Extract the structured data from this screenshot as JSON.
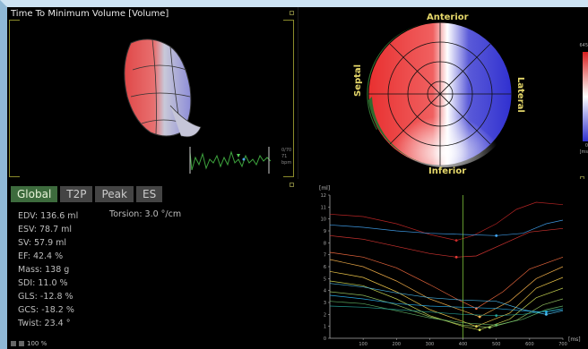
{
  "panel3d": {
    "title": "Time To Minimum Volume [Volume]",
    "ecg_label_top": "0/70",
    "ecg_label_bottom": "71 bpm"
  },
  "bullseye": {
    "labels": {
      "anterior": "Anterior",
      "inferior": "Inferior",
      "septal": "Septal",
      "lateral": "Lateral"
    },
    "scale_top": "645",
    "scale_bottom": "0",
    "scale_unit": "[ms"
  },
  "tabs": [
    {
      "label": "Global",
      "active": true
    },
    {
      "label": "T2P",
      "active": false
    },
    {
      "label": "Peak",
      "active": false
    },
    {
      "label": "ES",
      "active": false
    }
  ],
  "stats": [
    "EDV: 136.6 ml",
    "ESV: 78.7 ml",
    "SV: 57.9 ml",
    "EF: 42.4 %",
    "Mass: 138 g",
    "SDI: 11.0 %",
    "GLS: -12.8 %",
    "GCS: -18.2 %",
    "Twist: 23.4 °"
  ],
  "torsion": "Torsion: 3.0 °/cm",
  "footer": {
    "zoom": "100 %"
  },
  "chart_data": {
    "type": "line",
    "ylabel": "[ml]",
    "xlabel": "[ms]",
    "xlim": [
      0,
      700
    ],
    "ylim": [
      0,
      12
    ],
    "x_ticks": [
      "100",
      "200",
      "300",
      "400",
      "500",
      "600",
      "700"
    ],
    "y_ticks": [
      "0",
      "1",
      "2",
      "3",
      "4",
      "5",
      "6",
      "7",
      "8",
      "9",
      "10",
      "11",
      "12"
    ],
    "marker_x": 400,
    "series": [
      {
        "color": "#c62828",
        "values": [
          [
            0,
            10.4
          ],
          [
            100,
            10.2
          ],
          [
            200,
            9.6
          ],
          [
            300,
            8.7
          ],
          [
            380,
            8.2
          ],
          [
            430,
            8.6
          ],
          [
            500,
            9.6
          ],
          [
            560,
            10.8
          ],
          [
            620,
            11.4
          ],
          [
            700,
            11.2
          ]
        ]
      },
      {
        "color": "#e53935",
        "values": [
          [
            0,
            8.6
          ],
          [
            100,
            8.3
          ],
          [
            200,
            7.7
          ],
          [
            300,
            7.1
          ],
          [
            380,
            6.8
          ],
          [
            440,
            6.9
          ],
          [
            520,
            7.9
          ],
          [
            600,
            8.9
          ],
          [
            700,
            9.2
          ]
        ]
      },
      {
        "color": "#ff7043",
        "values": [
          [
            0,
            7.2
          ],
          [
            100,
            6.8
          ],
          [
            200,
            5.9
          ],
          [
            300,
            4.5
          ],
          [
            380,
            3.3
          ],
          [
            440,
            2.5
          ],
          [
            520,
            3.9
          ],
          [
            600,
            5.8
          ],
          [
            700,
            6.8
          ]
        ]
      },
      {
        "color": "#ffb74d",
        "values": [
          [
            0,
            6.6
          ],
          [
            100,
            6.0
          ],
          [
            200,
            4.8
          ],
          [
            300,
            3.3
          ],
          [
            400,
            2.3
          ],
          [
            450,
            1.8
          ],
          [
            540,
            3.1
          ],
          [
            620,
            5.0
          ],
          [
            700,
            6.0
          ]
        ]
      },
      {
        "color": "#ffd54f",
        "values": [
          [
            0,
            5.6
          ],
          [
            100,
            5.1
          ],
          [
            200,
            3.9
          ],
          [
            300,
            2.4
          ],
          [
            400,
            1.4
          ],
          [
            440,
            1.0
          ],
          [
            540,
            2.1
          ],
          [
            620,
            4.2
          ],
          [
            700,
            5.1
          ]
        ]
      },
      {
        "color": "#d4e157",
        "values": [
          [
            0,
            4.8
          ],
          [
            100,
            4.4
          ],
          [
            200,
            3.3
          ],
          [
            300,
            1.9
          ],
          [
            400,
            1.0
          ],
          [
            450,
            0.7
          ],
          [
            540,
            1.6
          ],
          [
            620,
            3.4
          ],
          [
            700,
            4.2
          ]
        ]
      },
      {
        "color": "#9ccc65",
        "values": [
          [
            0,
            3.9
          ],
          [
            100,
            3.6
          ],
          [
            200,
            2.8
          ],
          [
            300,
            1.8
          ],
          [
            400,
            1.1
          ],
          [
            480,
            0.9
          ],
          [
            560,
            1.5
          ],
          [
            640,
            2.8
          ],
          [
            700,
            3.3
          ]
        ]
      },
      {
        "color": "#66bb6a",
        "values": [
          [
            0,
            3.1
          ],
          [
            100,
            2.9
          ],
          [
            200,
            2.3
          ],
          [
            300,
            1.7
          ],
          [
            400,
            1.3
          ],
          [
            500,
            1.1
          ],
          [
            580,
            1.6
          ],
          [
            650,
            2.4
          ],
          [
            700,
            2.7
          ]
        ]
      },
      {
        "color": "#4fc3f7",
        "values": [
          [
            0,
            4.6
          ],
          [
            100,
            4.3
          ],
          [
            200,
            3.8
          ],
          [
            300,
            3.4
          ],
          [
            400,
            3.2
          ],
          [
            500,
            3.1
          ],
          [
            580,
            2.4
          ],
          [
            650,
            2.0
          ],
          [
            700,
            2.3
          ]
        ]
      },
      {
        "color": "#42a5f5",
        "values": [
          [
            0,
            9.5
          ],
          [
            100,
            9.3
          ],
          [
            200,
            9.0
          ],
          [
            300,
            8.8
          ],
          [
            400,
            8.7
          ],
          [
            500,
            8.6
          ],
          [
            580,
            8.8
          ],
          [
            650,
            9.6
          ],
          [
            700,
            9.9
          ]
        ]
      },
      {
        "color": "#29b6f6",
        "values": [
          [
            0,
            3.6
          ],
          [
            100,
            3.3
          ],
          [
            200,
            2.9
          ],
          [
            300,
            2.7
          ],
          [
            400,
            2.6
          ],
          [
            500,
            2.5
          ],
          [
            580,
            2.3
          ],
          [
            650,
            2.2
          ],
          [
            700,
            2.4
          ]
        ]
      },
      {
        "color": "#26a69a",
        "values": [
          [
            0,
            2.7
          ],
          [
            100,
            2.6
          ],
          [
            200,
            2.4
          ],
          [
            300,
            2.2
          ],
          [
            400,
            2.0
          ],
          [
            500,
            1.9
          ],
          [
            580,
            2.0
          ],
          [
            650,
            2.3
          ],
          [
            700,
            2.5
          ]
        ]
      }
    ]
  }
}
